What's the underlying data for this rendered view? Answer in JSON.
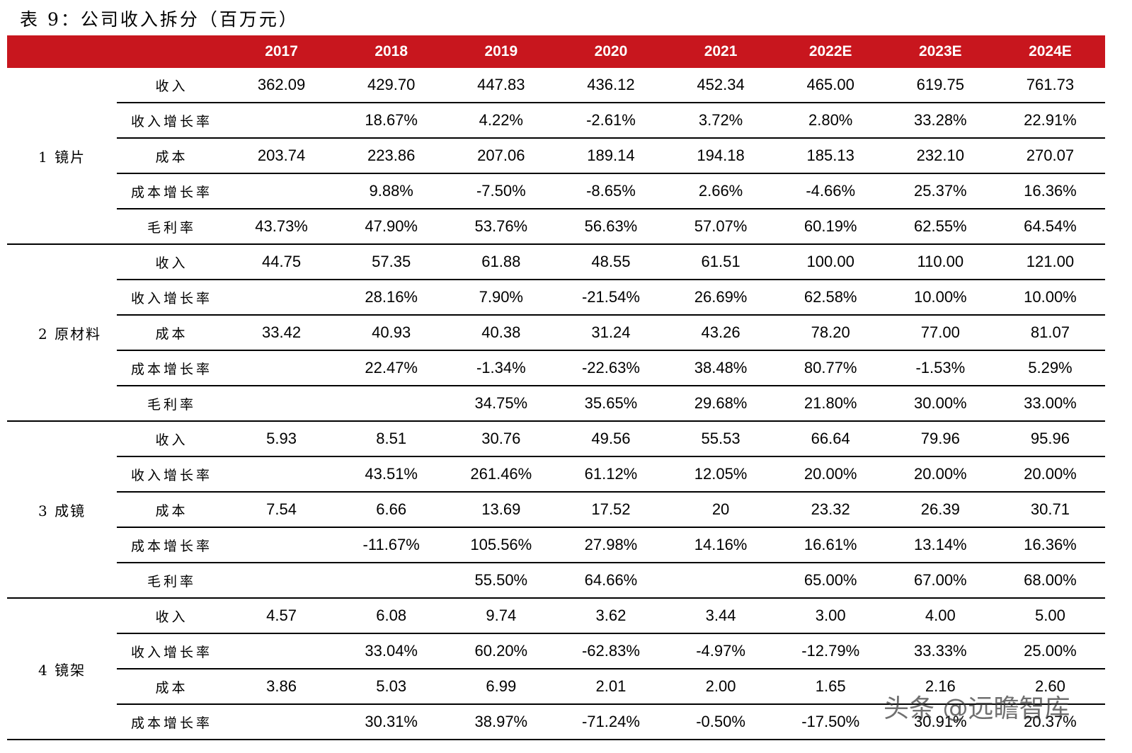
{
  "title": "表 9：公司收入拆分（百万元）",
  "columns": [
    "",
    "",
    "2017",
    "2018",
    "2019",
    "2020",
    "2021",
    "2022E",
    "2023E",
    "2024E"
  ],
  "segments": [
    {
      "name": "1 镜片",
      "rows": [
        {
          "metric": "收入",
          "values": [
            "362.09",
            "429.70",
            "447.83",
            "436.12",
            "452.34",
            "465.00",
            "619.75",
            "761.73"
          ]
        },
        {
          "metric": "收入增长率",
          "values": [
            "",
            "18.67%",
            "4.22%",
            "-2.61%",
            "3.72%",
            "2.80%",
            "33.28%",
            "22.91%"
          ]
        },
        {
          "metric": "成本",
          "values": [
            "203.74",
            "223.86",
            "207.06",
            "189.14",
            "194.18",
            "185.13",
            "232.10",
            "270.07"
          ]
        },
        {
          "metric": "成本增长率",
          "values": [
            "",
            "9.88%",
            "-7.50%",
            "-8.65%",
            "2.66%",
            "-4.66%",
            "25.37%",
            "16.36%"
          ]
        },
        {
          "metric": "毛利率",
          "values": [
            "43.73%",
            "47.90%",
            "53.76%",
            "56.63%",
            "57.07%",
            "60.19%",
            "62.55%",
            "64.54%"
          ]
        }
      ]
    },
    {
      "name": "2 原材料",
      "rows": [
        {
          "metric": "收入",
          "values": [
            "44.75",
            "57.35",
            "61.88",
            "48.55",
            "61.51",
            "100.00",
            "110.00",
            "121.00"
          ]
        },
        {
          "metric": "收入增长率",
          "values": [
            "",
            "28.16%",
            "7.90%",
            "-21.54%",
            "26.69%",
            "62.58%",
            "10.00%",
            "10.00%"
          ]
        },
        {
          "metric": "成本",
          "values": [
            "33.42",
            "40.93",
            "40.38",
            "31.24",
            "43.26",
            "78.20",
            "77.00",
            "81.07"
          ]
        },
        {
          "metric": "成本增长率",
          "values": [
            "",
            "22.47%",
            "-1.34%",
            "-22.63%",
            "38.48%",
            "80.77%",
            "-1.53%",
            "5.29%"
          ]
        },
        {
          "metric": "毛利率",
          "values": [
            "",
            "",
            "34.75%",
            "35.65%",
            "29.68%",
            "21.80%",
            "30.00%",
            "33.00%"
          ]
        }
      ]
    },
    {
      "name": "3 成镜",
      "rows": [
        {
          "metric": "收入",
          "values": [
            "5.93",
            "8.51",
            "30.76",
            "49.56",
            "55.53",
            "66.64",
            "79.96",
            "95.96"
          ]
        },
        {
          "metric": "收入增长率",
          "values": [
            "",
            "43.51%",
            "261.46%",
            "61.12%",
            "12.05%",
            "20.00%",
            "20.00%",
            "20.00%"
          ]
        },
        {
          "metric": "成本",
          "values": [
            "7.54",
            "6.66",
            "13.69",
            "17.52",
            "20",
            "23.32",
            "26.39",
            "30.71"
          ]
        },
        {
          "metric": "成本增长率",
          "values": [
            "",
            "-11.67%",
            "105.56%",
            "27.98%",
            "14.16%",
            "16.61%",
            "13.14%",
            "16.36%"
          ]
        },
        {
          "metric": "毛利率",
          "values": [
            "",
            "",
            "55.50%",
            "64.66%",
            "",
            "65.00%",
            "67.00%",
            "68.00%"
          ]
        }
      ]
    },
    {
      "name": "4 镜架",
      "rows": [
        {
          "metric": "收入",
          "values": [
            "4.57",
            "6.08",
            "9.74",
            "3.62",
            "3.44",
            "3.00",
            "4.00",
            "5.00"
          ]
        },
        {
          "metric": "收入增长率",
          "values": [
            "",
            "33.04%",
            "60.20%",
            "-62.83%",
            "-4.97%",
            "-12.79%",
            "33.33%",
            "25.00%"
          ]
        },
        {
          "metric": "成本",
          "values": [
            "3.86",
            "5.03",
            "6.99",
            "2.01",
            "2.00",
            "1.65",
            "2.16",
            "2.60"
          ]
        },
        {
          "metric": "成本增长率",
          "values": [
            "",
            "30.31%",
            "38.97%",
            "-71.24%",
            "-0.50%",
            "-17.50%",
            "30.91%",
            "20.37%"
          ]
        }
      ]
    }
  ],
  "watermark": "头条 @远瞻智库",
  "colors": {
    "header_bg": "#c8161e",
    "header_text": "#ffffff",
    "rule": "#000000"
  }
}
